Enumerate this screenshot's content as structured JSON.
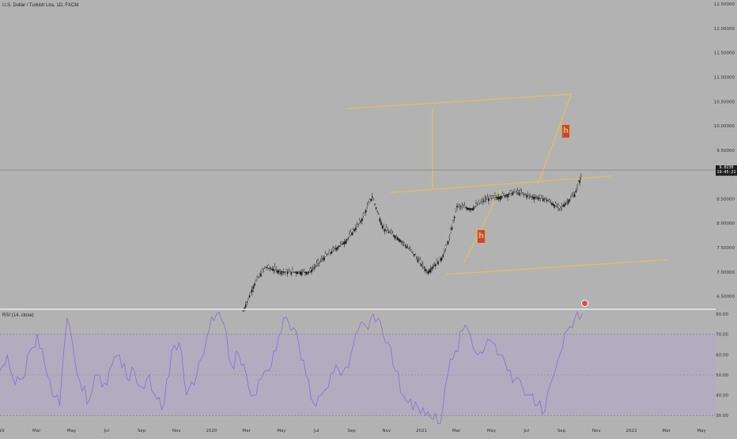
{
  "header": {
    "symbol_title": "U.S. Dollar / Turkish Lira, 1D, FXCM",
    "rsi_title": "RSI (14, close)"
  },
  "colors": {
    "background": "#b2b2b2",
    "candles": "#111111",
    "channel_lines": "#e8c64a",
    "rsi_line": "#8a6bd0",
    "rsi_band": "#b3a8c9",
    "badge_fill": "#c0406a"
  },
  "price_tag": {
    "value": "9.0230",
    "countdown": "19:45:21"
  },
  "badges": [
    {
      "icon": "h-badge-icon",
      "text": "h"
    },
    {
      "icon": "h-badge-icon",
      "text": "h"
    }
  ],
  "event_icon": "flag-event-icon",
  "chart_data": [
    {
      "type": "candlestick",
      "title": "U.S. Dollar / Turkish Lira, 1D, FXCM",
      "y_axis": {
        "ticks": [
          "6.50000",
          "7.00000",
          "7.50000",
          "8.00000",
          "8.50000",
          "9.00000",
          "9.50000",
          "10.00000",
          "10.50000",
          "11.00000",
          "11.50000",
          "12.00000",
          "12.50000"
        ],
        "range": [
          6.25,
          12.55
        ]
      },
      "x_axis": {
        "ticks": [
          "19",
          "Mar",
          "May",
          "Jul",
          "Sep",
          "Nov",
          "2020",
          "Mar",
          "May",
          "Jul",
          "Sep",
          "Nov",
          "2021",
          "Mar",
          "May",
          "Jul",
          "Sep",
          "Nov",
          "2022",
          "Mar",
          "May"
        ]
      },
      "last_price": 9.023,
      "close_path": [
        [
          0.33,
          6.2
        ],
        [
          0.345,
          6.75
        ],
        [
          0.36,
          7.1
        ],
        [
          0.385,
          7.0
        ],
        [
          0.42,
          7.0
        ],
        [
          0.44,
          7.3
        ],
        [
          0.47,
          7.65
        ],
        [
          0.49,
          8.05
        ],
        [
          0.505,
          8.55
        ],
        [
          0.52,
          7.9
        ],
        [
          0.54,
          7.7
        ],
        [
          0.56,
          7.4
        ],
        [
          0.58,
          7.0
        ],
        [
          0.6,
          7.3
        ],
        [
          0.61,
          7.7
        ],
        [
          0.62,
          8.35
        ],
        [
          0.64,
          8.3
        ],
        [
          0.66,
          8.5
        ],
        [
          0.68,
          8.55
        ],
        [
          0.7,
          8.65
        ],
        [
          0.72,
          8.55
        ],
        [
          0.74,
          8.5
        ],
        [
          0.76,
          8.3
        ],
        [
          0.78,
          8.6
        ],
        [
          0.79,
          9.02
        ]
      ]
    },
    {
      "type": "line",
      "title": "RSI (14, close)",
      "y_axis": {
        "ticks": [
          "80.00",
          "70.00",
          "60.00",
          "50.00",
          "40.00",
          "30.00"
        ],
        "range": [
          25,
          82
        ]
      },
      "band": [
        30,
        70
      ],
      "values": [
        52,
        60,
        45,
        48,
        62,
        70,
        55,
        40,
        35,
        78,
        58,
        42,
        38,
        50,
        46,
        55,
        60,
        48,
        52,
        44,
        50,
        38,
        36,
        62,
        66,
        40,
        45,
        58,
        72,
        80,
        75,
        55,
        60,
        50,
        40,
        48,
        52,
        62,
        78,
        72,
        66,
        50,
        36,
        40,
        44,
        55,
        52,
        60,
        72,
        74,
        80,
        76,
        66,
        52,
        40,
        38,
        34,
        30,
        28,
        26,
        50,
        62,
        72,
        70,
        60,
        64,
        66,
        60,
        52,
        48,
        44,
        40,
        35,
        32,
        48,
        60,
        72,
        78,
        80
      ]
    },
    {
      "type": "annotations",
      "channel_lines": [
        {
          "from": [
            0.47,
            10.35
          ],
          "to": [
            0.775,
            10.65
          ]
        },
        {
          "from": [
            0.53,
            8.63
          ],
          "to": [
            0.83,
            8.97
          ]
        },
        {
          "from": [
            0.605,
            6.95
          ],
          "to": [
            0.905,
            7.25
          ]
        },
        {
          "from": [
            0.63,
            7.2
          ],
          "to": [
            0.68,
            8.7
          ]
        },
        {
          "from": [
            0.73,
            8.8
          ],
          "to": [
            0.775,
            10.65
          ]
        },
        {
          "from": [
            0.587,
            10.35
          ],
          "to": [
            0.587,
            8.73
          ]
        }
      ]
    }
  ]
}
